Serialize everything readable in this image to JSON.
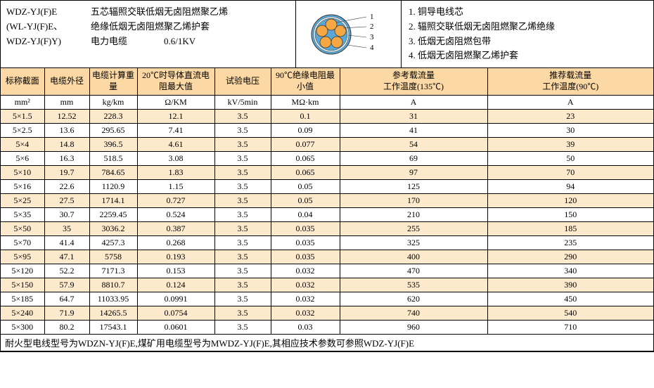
{
  "header": {
    "models": [
      "WDZ-YJ(F)E",
      "(WL-YJ(F)E、",
      "WDZ-YJ(F)Y)"
    ],
    "desc": [
      "五芯辐照交联低烟无卤阻燃聚乙烯",
      "绝缘低烟无卤阻燃聚乙烯护套",
      "电力电缆　　　　0.6/1KV"
    ],
    "legend": [
      "1. 铜导电线芯",
      "2. 辐照交联低烟无卤阻燃聚乙烯绝缘",
      "3. 低烟无卤阻燃包带",
      "4. 低烟无卤阻燃聚乙烯护套"
    ],
    "diagram": {
      "outer_stroke": "#5aa7d6",
      "outer_fill": "#ffffff",
      "ring_fill": "#5aa7d6",
      "core_fill": "#f4a742",
      "core_stroke": "#333333",
      "labels": [
        "1",
        "2",
        "3",
        "4"
      ]
    }
  },
  "columns_main": [
    "标称截面",
    "电缆外径",
    "电缆计算重量",
    "20℃时导体直流电阻最大值",
    "试验电压",
    "90℃绝缘电阻最小值",
    "参考载流量\n工作温度(135℃)",
    "推荐载流量\n工作温度(90℃)"
  ],
  "columns_unit": [
    "mm²",
    "mm",
    "kg/km",
    "Ω/KM",
    "kV/5min",
    "MΩ·km",
    "A",
    "A"
  ],
  "rows": [
    [
      "5×1.5",
      "12.52",
      "228.3",
      "12.1",
      "3.5",
      "0.1",
      "31",
      "23"
    ],
    [
      "5×2.5",
      "13.6",
      "295.65",
      "7.41",
      "3.5",
      "0.09",
      "41",
      "30"
    ],
    [
      "5×4",
      "14.8",
      "396.5",
      "4.61",
      "3.5",
      "0.077",
      "54",
      "39"
    ],
    [
      "5×6",
      "16.3",
      "518.5",
      "3.08",
      "3.5",
      "0.065",
      "69",
      "50"
    ],
    [
      "5×10",
      "19.7",
      "784.65",
      "1.83",
      "3.5",
      "0.065",
      "97",
      "70"
    ],
    [
      "5×16",
      "22.6",
      "1120.9",
      "1.15",
      "3.5",
      "0.05",
      "125",
      "94"
    ],
    [
      "5×25",
      "27.5",
      "1714.1",
      "0.727",
      "3.5",
      "0.05",
      "170",
      "120"
    ],
    [
      "5×35",
      "30.7",
      "2259.45",
      "0.524",
      "3.5",
      "0.04",
      "210",
      "150"
    ],
    [
      "5×50",
      "35",
      "3036.2",
      "0.387",
      "3.5",
      "0.035",
      "255",
      "185"
    ],
    [
      "5×70",
      "41.4",
      "4257.3",
      "0.268",
      "3.5",
      "0.035",
      "325",
      "235"
    ],
    [
      "5×95",
      "47.1",
      "5758",
      "0.193",
      "3.5",
      "0.035",
      "400",
      "290"
    ],
    [
      "5×120",
      "52.2",
      "7171.3",
      "0.153",
      "3.5",
      "0.032",
      "470",
      "340"
    ],
    [
      "5×150",
      "57.9",
      "8810.7",
      "0.124",
      "3.5",
      "0.032",
      "535",
      "390"
    ],
    [
      "5×185",
      "64.7",
      "11033.95",
      "0.0991",
      "3.5",
      "0.032",
      "620",
      "450"
    ],
    [
      "5×240",
      "71.9",
      "14265.5",
      "0.0754",
      "3.5",
      "0.032",
      "740",
      "540"
    ],
    [
      "5×300",
      "80.2",
      "17543.1",
      "0.0601",
      "3.5",
      "0.03",
      "960",
      "710"
    ]
  ],
  "footer": "耐火型电线型号为WDZN-YJ(F)E,煤矿用电缆型号为MWDZ-YJ(F)E,其相应技术参数可参照WDZ-YJ(F)E",
  "styling": {
    "header_bg": "#fcd9a4",
    "stripe_bg": "#fde9cc",
    "border_color": "#000000",
    "font_family": "SimSun",
    "base_font_size": 12
  }
}
